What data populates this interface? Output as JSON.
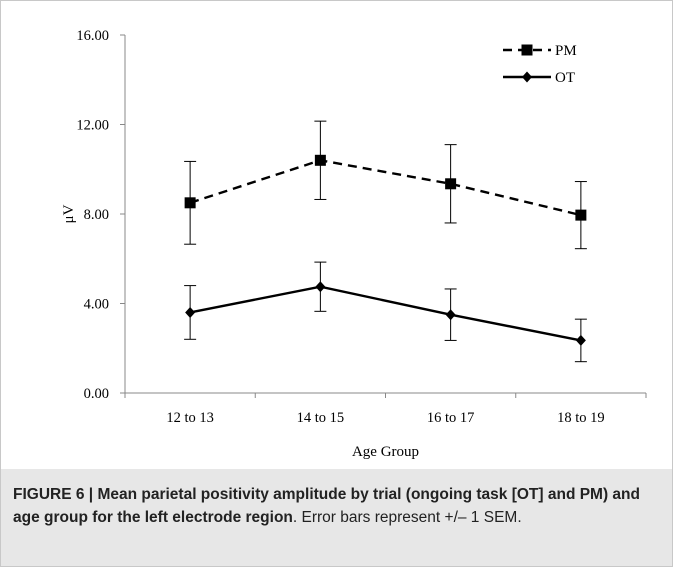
{
  "chart_data": {
    "type": "line",
    "categories": [
      "12 to 13",
      "14 to 15",
      "16 to 17",
      "18 to 19"
    ],
    "series": [
      {
        "name": "PM",
        "values": [
          8.5,
          10.4,
          9.35,
          7.95
        ],
        "errors": [
          1.85,
          1.75,
          1.75,
          1.5
        ],
        "line_style": "dashed",
        "marker": "square"
      },
      {
        "name": "OT",
        "values": [
          3.6,
          4.75,
          3.5,
          2.35
        ],
        "errors": [
          1.2,
          1.1,
          1.15,
          0.95
        ],
        "line_style": "solid",
        "marker": "diamond"
      }
    ],
    "ylabel": "μV",
    "xlabel": "Age Group",
    "ylim": [
      0,
      16
    ],
    "yticks": [
      "0.00",
      "4.00",
      "8.00",
      "12.00",
      "16.00"
    ],
    "grid": false,
    "legend_position": "top-right",
    "line_color": "#000000"
  },
  "caption": {
    "figure_label": "FIGURE 6 | ",
    "title": "Mean parietal positivity amplitude by trial (ongoing task [OT] and PM) and age group for the left electrode region",
    "text": ". Error bars represent +/– 1 SEM."
  }
}
